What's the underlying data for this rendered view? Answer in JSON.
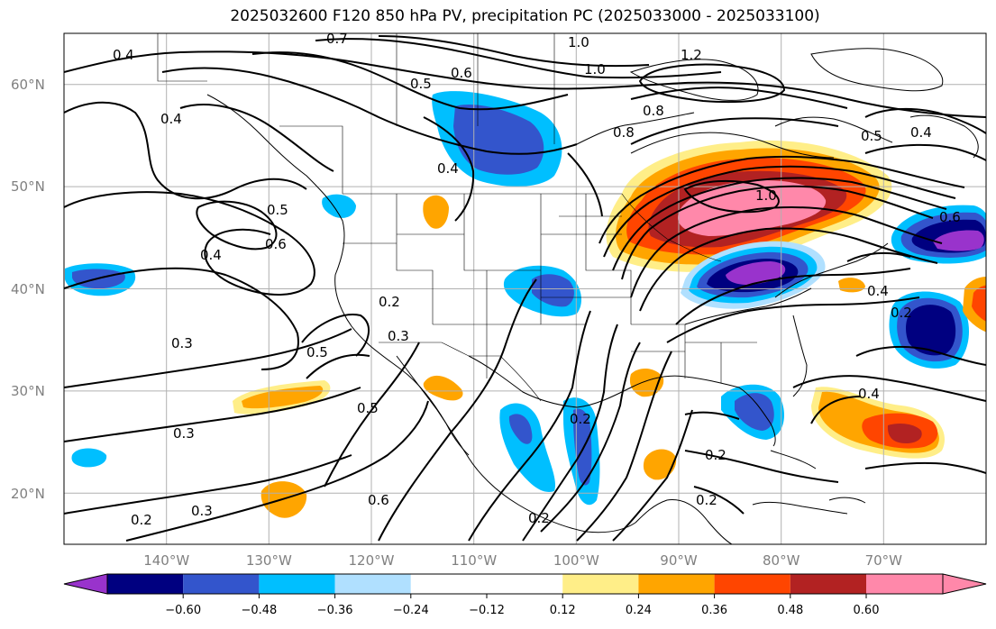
{
  "title": "2025032600 F120 850 hPa PV, precipitation PC (2025033000 - 2025033100)",
  "map": {
    "lon_range": [
      -150,
      -60
    ],
    "lat_range": [
      15,
      65
    ],
    "lon_ticks": [
      "140°W",
      "130°W",
      "120°W",
      "110°W",
      "100°W",
      "90°W",
      "80°W",
      "70°W"
    ],
    "lat_ticks": [
      "60°N",
      "50°N",
      "40°N",
      "30°N",
      "20°N"
    ],
    "gridlines": true,
    "contour_labels": [
      "0.4",
      "0.4",
      "0.7",
      "0.5",
      "0.6",
      "1.0",
      "1.0",
      "1.2",
      "0.8",
      "0.8",
      "0.5",
      "0.4",
      "0.4",
      "0.5",
      "0.6",
      "0.4",
      "0.2",
      "0.3",
      "0.3",
      "0.5",
      "0.3",
      "0.5",
      "0.6",
      "0.3",
      "0.2",
      "0.2",
      "0.2",
      "1.0",
      "0.6",
      "0.4",
      "0.2",
      "0.4",
      "0.2",
      "0.2"
    ]
  },
  "colorbar": {
    "labels": [
      "−0.60",
      "−0.48",
      "−0.36",
      "−0.24",
      "−0.12",
      "0.12",
      "0.24",
      "0.36",
      "0.48",
      "0.60"
    ],
    "colors": [
      "#9933cc",
      "#000080",
      "#3355cc",
      "#00bfff",
      "#b0e0ff",
      "#ffffff",
      "#ffee88",
      "#ffa500",
      "#ff4500",
      "#b22222",
      "#ff88aa"
    ]
  }
}
